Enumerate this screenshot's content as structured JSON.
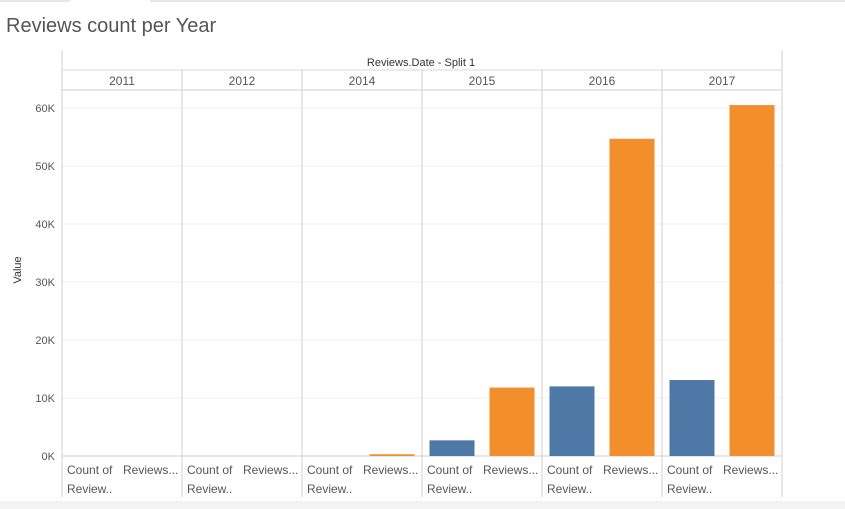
{
  "title": "Reviews count per Year",
  "chart_data": {
    "type": "bar",
    "column_header": "Reviews.Date - Split 1",
    "ylabel": "Value",
    "ylim": [
      0,
      65000
    ],
    "yticks": [
      0,
      10000,
      20000,
      30000,
      40000,
      50000,
      60000
    ],
    "ytick_labels": [
      "0K",
      "10K",
      "20K",
      "30K",
      "40K",
      "50K",
      "60K"
    ],
    "panes": [
      {
        "year": "2011",
        "values": [
          0,
          0
        ],
        "labels": [
          "Count of Review..",
          "Reviews..."
        ]
      },
      {
        "year": "2012",
        "values": [
          0,
          0
        ],
        "labels": [
          "Count of Review..",
          "Reviews..."
        ]
      },
      {
        "year": "2014",
        "values": [
          0,
          300
        ],
        "labels": [
          "Count of Review..",
          "Reviews..."
        ]
      },
      {
        "year": "2015",
        "values": [
          2700,
          11800
        ],
        "labels": [
          "Count of Review..",
          "Reviews..."
        ]
      },
      {
        "year": "2016",
        "values": [
          12000,
          54700
        ],
        "labels": [
          "Count of Review..",
          "Reviews..."
        ]
      },
      {
        "year": "2017",
        "values": [
          13100,
          60500
        ],
        "labels": [
          "Count of Review..",
          "Reviews..."
        ]
      }
    ],
    "series_colors": [
      "#4e79a7",
      "#f28e2b"
    ]
  }
}
